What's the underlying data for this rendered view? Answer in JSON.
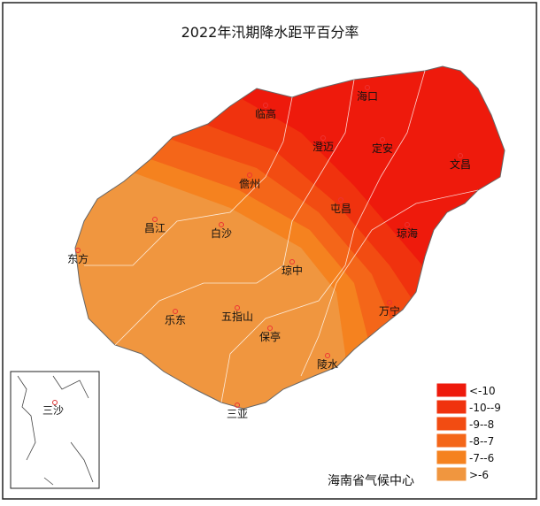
{
  "title": "2022年汛期降水距平百分率",
  "cities": [
    "临高",
    "海口",
    "澄迈",
    "定安",
    "文昌",
    "儋州",
    "屯昌",
    "琼海",
    "昌江",
    "白沙",
    "东方",
    "琼中",
    "五指山",
    "乐东",
    "万宁",
    "保亭",
    "陵水",
    "三亚"
  ],
  "inset": {
    "label": "三沙"
  },
  "legend": [
    {
      "label": "<-10",
      "color": "#ee1a0c"
    },
    {
      "label": "-10--9",
      "color": "#f0320e"
    },
    {
      "label": "-9--8",
      "color": "#f24c12"
    },
    {
      "label": "-8--7",
      "color": "#f46619"
    },
    {
      "label": "-7--6",
      "color": "#f5821f"
    },
    {
      "label": ">-6",
      "color": "#f0963f"
    }
  ],
  "credit": "海南省气候中心"
}
